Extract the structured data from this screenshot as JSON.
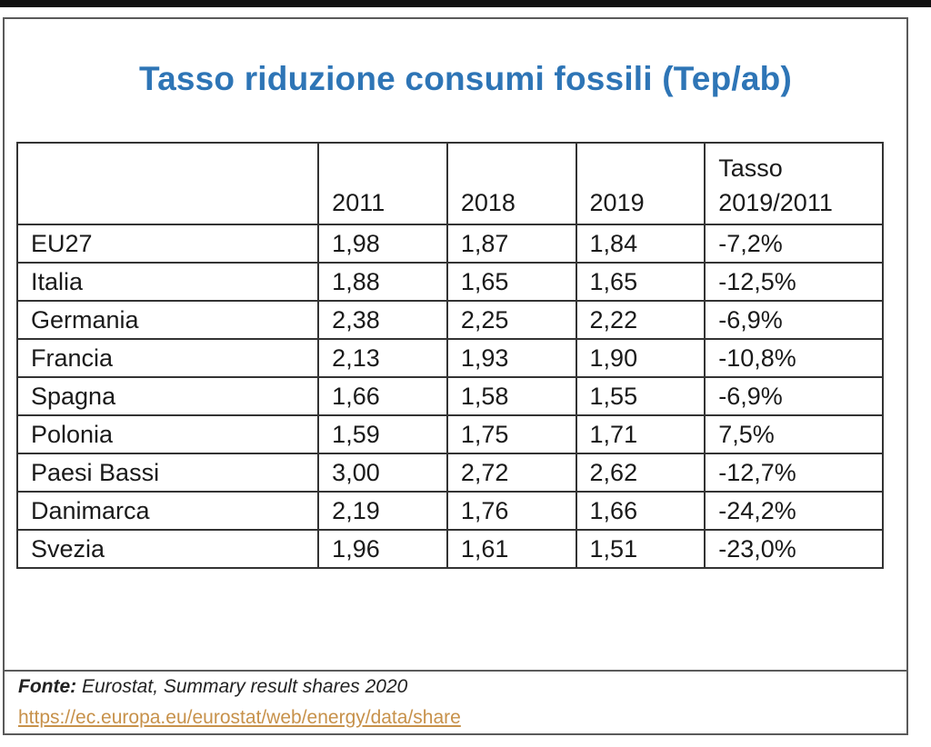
{
  "title": "Tasso riduzione consumi fossili (Tep/ab)",
  "table": {
    "headers": [
      "",
      "2011",
      "2018",
      "2019",
      "Tasso 2019/2011"
    ],
    "header_rate_line1": "Tasso",
    "header_rate_line2": "2019/2011",
    "rows": [
      [
        "EU27",
        "1,98",
        "1,87",
        "1,84",
        "-7,2%"
      ],
      [
        "Italia",
        "1,88",
        "1,65",
        "1,65",
        "-12,5%"
      ],
      [
        "Germania",
        "2,38",
        "2,25",
        "2,22",
        "-6,9%"
      ],
      [
        "Francia",
        "2,13",
        "1,93",
        "1,90",
        "-10,8%"
      ],
      [
        "Spagna",
        "1,66",
        "1,58",
        "1,55",
        "-6,9%"
      ],
      [
        "Polonia",
        "1,59",
        "1,75",
        "1,71",
        "7,5%"
      ],
      [
        "Paesi Bassi",
        "3,00",
        "2,72",
        "2,62",
        "-12,7%"
      ],
      [
        "Danimarca",
        "2,19",
        "1,76",
        "1,66",
        "-24,2%"
      ],
      [
        "Svezia",
        "1,96",
        "1,61",
        "1,51",
        "-23,0%"
      ]
    ]
  },
  "source": {
    "label": "Fonte:",
    "text": " Eurostat, Summary result shares 2020",
    "url": "https://ec.europa.eu/eurostat/web/energy/data/share"
  },
  "colors": {
    "title": "#2e75b6",
    "link": "#c7914a",
    "border": "#333333"
  }
}
